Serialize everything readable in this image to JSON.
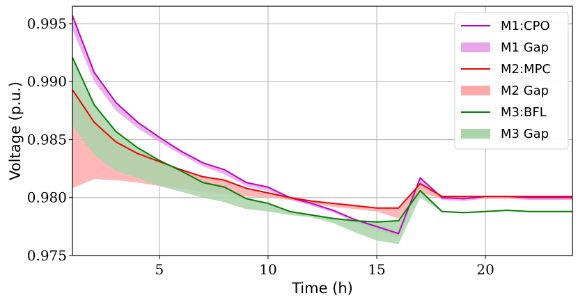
{
  "chart_data": {
    "type": "line",
    "xlabel": "Time (h)",
    "ylabel": "Voltage (p.u.)",
    "xlim": [
      1,
      24
    ],
    "ylim": [
      0.975,
      0.9965
    ],
    "x_ticks": [
      5,
      10,
      15,
      20
    ],
    "y_ticks": [
      0.975,
      0.98,
      0.985,
      0.99,
      0.995
    ],
    "x_tick_labels": [
      "5",
      "10",
      "15",
      "20"
    ],
    "y_tick_labels": [
      "0.975",
      "0.980",
      "0.985",
      "0.990",
      "0.995"
    ],
    "grid": true,
    "legend_position": "top-right",
    "x": [
      1,
      2,
      3,
      4,
      5,
      6,
      7,
      8,
      9,
      10,
      11,
      12,
      13,
      14,
      15,
      16,
      17,
      18,
      19,
      20,
      21,
      22,
      23,
      24
    ],
    "series": [
      {
        "name": "M1:CPO",
        "kind": "line",
        "color": "#bf00bf",
        "values": [
          0.9957,
          0.9908,
          0.9882,
          0.9865,
          0.9852,
          0.984,
          0.983,
          0.9824,
          0.9813,
          0.9809,
          0.98,
          0.9795,
          0.9789,
          0.9781,
          0.9775,
          0.9769,
          0.9817,
          0.98,
          0.9799,
          0.9801,
          0.9801,
          0.98,
          0.98,
          0.98
        ]
      },
      {
        "name": "M1 Gap",
        "kind": "band",
        "color": "#e8a6e8",
        "upper": [
          0.9957,
          0.9908,
          0.9882,
          0.9865,
          0.9852,
          0.984,
          0.983,
          0.9824,
          0.9813,
          0.9809,
          0.98,
          0.9795,
          0.9789,
          0.9781,
          0.9775,
          0.9769,
          0.9817,
          0.98,
          0.9799,
          0.9801,
          0.9801,
          0.98,
          0.98,
          0.98
        ],
        "lower": [
          0.9945,
          0.99,
          0.9875,
          0.986,
          0.9848,
          0.9837,
          0.9827,
          0.982,
          0.981,
          0.9806,
          0.9798,
          0.9793,
          0.9787,
          0.9779,
          0.9772,
          0.9766,
          0.9812,
          0.9798,
          0.9797,
          0.9799,
          0.9799,
          0.9798,
          0.9798,
          0.9798
        ]
      },
      {
        "name": "M2:MPC",
        "kind": "line",
        "color": "#ee0000",
        "values": [
          0.9893,
          0.9865,
          0.9848,
          0.9838,
          0.9831,
          0.9824,
          0.9818,
          0.9815,
          0.9808,
          0.9804,
          0.98,
          0.9797,
          0.9795,
          0.9793,
          0.9791,
          0.9791,
          0.9812,
          0.9801,
          0.9801,
          0.9801,
          0.9801,
          0.9801,
          0.9801,
          0.9801
        ]
      },
      {
        "name": "M2 Gap",
        "kind": "band",
        "color": "#ffaaaa",
        "upper": [
          0.9893,
          0.9865,
          0.9848,
          0.9838,
          0.9831,
          0.9824,
          0.9818,
          0.9815,
          0.9808,
          0.9804,
          0.98,
          0.9797,
          0.9795,
          0.9793,
          0.9791,
          0.9791,
          0.9812,
          0.9801,
          0.9801,
          0.9801,
          0.9801,
          0.9801,
          0.9801,
          0.9801
        ],
        "lower": [
          0.9808,
          0.9816,
          0.9815,
          0.9813,
          0.981,
          0.9808,
          0.9805,
          0.9803,
          0.9801,
          0.98,
          0.9798,
          0.9795,
          0.9792,
          0.979,
          0.9788,
          0.9782,
          0.9804,
          0.9799,
          0.9799,
          0.9799,
          0.9799,
          0.9799,
          0.9799,
          0.9799
        ]
      },
      {
        "name": "M3:BFL",
        "kind": "line",
        "color": "#007f00",
        "values": [
          0.9921,
          0.988,
          0.9857,
          0.9843,
          0.9832,
          0.9823,
          0.9813,
          0.9809,
          0.9799,
          0.9795,
          0.9788,
          0.9785,
          0.9782,
          0.978,
          0.9779,
          0.978,
          0.9806,
          0.9788,
          0.9787,
          0.9788,
          0.9789,
          0.9788,
          0.9788,
          0.9788
        ]
      },
      {
        "name": "M3 Gap",
        "kind": "band",
        "color": "#a9d5a9",
        "upper": [
          0.9921,
          0.988,
          0.9857,
          0.9843,
          0.9832,
          0.9823,
          0.9813,
          0.9809,
          0.9799,
          0.9795,
          0.9788,
          0.9785,
          0.9782,
          0.978,
          0.9779,
          0.978,
          0.9806,
          0.9788,
          0.9787,
          0.9788,
          0.9789,
          0.9788,
          0.9788,
          0.9788
        ],
        "lower": [
          0.9862,
          0.9837,
          0.9823,
          0.9817,
          0.981,
          0.9805,
          0.98,
          0.9796,
          0.979,
          0.9788,
          0.9785,
          0.9783,
          0.9778,
          0.977,
          0.9763,
          0.976,
          0.98,
          0.9788,
          0.9787,
          0.9788,
          0.9789,
          0.9788,
          0.9788,
          0.9788
        ]
      }
    ]
  }
}
